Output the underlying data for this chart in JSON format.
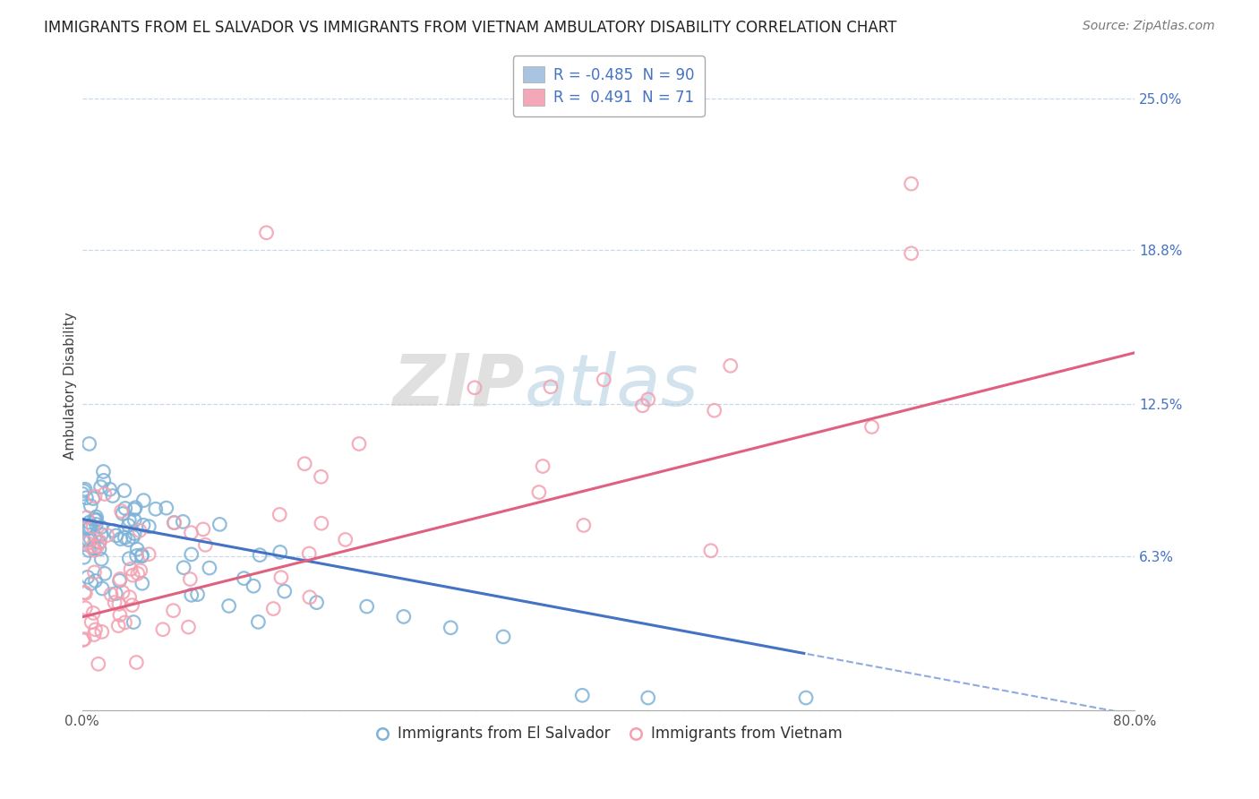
{
  "title": "IMMIGRANTS FROM EL SALVADOR VS IMMIGRANTS FROM VIETNAM AMBULATORY DISABILITY CORRELATION CHART",
  "source": "Source: ZipAtlas.com",
  "ylabel": "Ambulatory Disability",
  "right_yticks": [
    0.0,
    0.063,
    0.125,
    0.188,
    0.25
  ],
  "right_ytick_labels": [
    "",
    "6.3%",
    "12.5%",
    "18.8%",
    "25.0%"
  ],
  "legend_bottom": [
    "Immigrants from El Salvador",
    "Immigrants from Vietnam"
  ],
  "el_salvador_color": "#7eb3d8",
  "vietnam_color": "#f4a0b0",
  "el_salvador_R": -0.485,
  "el_salvador_N": 90,
  "vietnam_R": 0.491,
  "vietnam_N": 71,
  "watermark_zip": "ZIP",
  "watermark_atlas": "atlas",
  "background_color": "#ffffff",
  "grid_color": "#c8d8e8",
  "xlim": [
    0.0,
    0.8
  ],
  "ylim": [
    0.0,
    0.265
  ],
  "es_line_color": "#4472c4",
  "vn_line_color": "#e06080",
  "legend_patch_es": "#a8c4e0",
  "legend_patch_vn": "#f4a7b9",
  "legend_label_es": "R = -0.485  N = 90",
  "legend_label_vn": "R =  0.491  N = 71"
}
